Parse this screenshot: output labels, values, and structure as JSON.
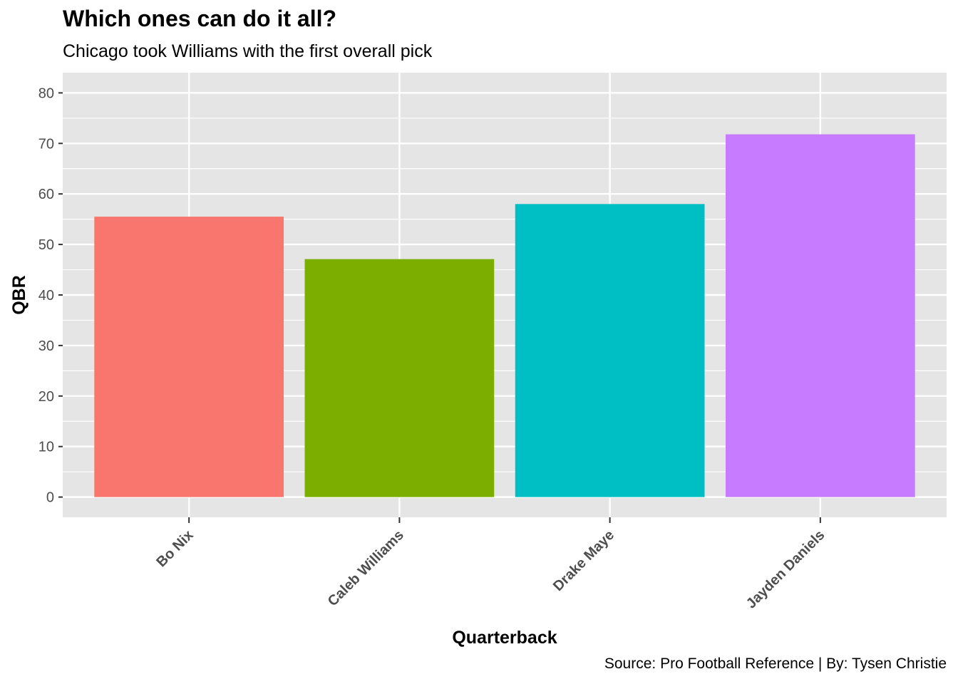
{
  "chart_data": {
    "type": "bar",
    "title": "Which ones can do it all?",
    "subtitle": "Chicago took Williams with the first overall pick",
    "caption": "Source: Pro Football Reference | By: Tysen Christie",
    "xlabel": "Quarterback",
    "ylabel": "QBR",
    "categories": [
      "Bo Nix",
      "Caleb Williams",
      "Drake Maye",
      "Jayden Daniels"
    ],
    "values": [
      55.5,
      47.1,
      58.0,
      71.8
    ],
    "colors": [
      "#F8766D",
      "#7CAE00",
      "#00BFC4",
      "#C77CFF"
    ],
    "ylim": [
      -4,
      84
    ],
    "yticks": [
      0,
      10,
      20,
      30,
      40,
      50,
      60,
      70,
      80
    ],
    "grid": true,
    "legend": "none",
    "panel_background": "#E5E5E5"
  }
}
